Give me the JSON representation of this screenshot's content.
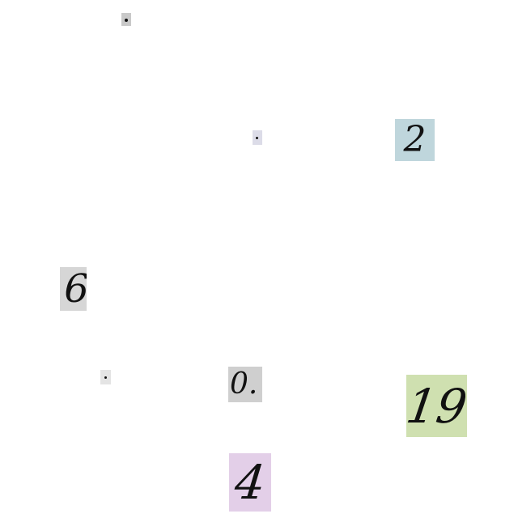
{
  "patches": [
    {
      "id": "patch-1",
      "text": "",
      "bg": "#c9c9c9"
    },
    {
      "id": "patch-2",
      "text": "",
      "bg": "#d9d9e6"
    },
    {
      "id": "patch-3",
      "text": "2",
      "bg": "#bfd6dc"
    },
    {
      "id": "patch-4",
      "text": "6",
      "bg": "#d6d6d6"
    },
    {
      "id": "patch-5",
      "text": "",
      "bg": "#e2e2e2"
    },
    {
      "id": "patch-6",
      "text": "0.",
      "bg": "#cfcfcf"
    },
    {
      "id": "patch-7",
      "text": "19",
      "bg": "#cfe0b0"
    },
    {
      "id": "patch-8",
      "text": "4",
      "bg": "#e3cfe8"
    }
  ]
}
